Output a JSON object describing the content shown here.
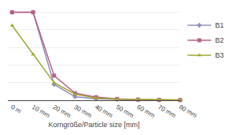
{
  "chart_data": {
    "type": "line",
    "xlabel": "Korngröße/Particle size [mm]",
    "x": [
      0,
      10,
      20,
      30,
      40,
      50,
      60,
      70,
      80
    ],
    "series": [
      {
        "name": "B1",
        "color": "#9090b8",
        "marker": "diamond",
        "values": [
          100,
          100,
          18,
          4,
          1.5,
          0.8,
          0.5,
          0.3,
          0.2
        ]
      },
      {
        "name": "B2",
        "color": "#b8608a",
        "marker": "square",
        "values": [
          100,
          100,
          28,
          8,
          3.5,
          1.5,
          0.8,
          0.5,
          0.3
        ]
      },
      {
        "name": "B3",
        "color": "#a0a832",
        "marker": "triangle",
        "values": [
          85,
          52,
          20,
          7,
          2.5,
          1.2,
          0.8,
          0.6,
          0.4
        ]
      }
    ],
    "xlim": [
      -2,
      80
    ],
    "xticks": [
      {
        "value": 0,
        "label": "0 m"
      },
      {
        "value": 10,
        "label": "10 mm"
      },
      {
        "value": 20,
        "label": "20 mm"
      },
      {
        "value": 30,
        "label": "30 mm"
      },
      {
        "value": 40,
        "label": "40 mm"
      },
      {
        "value": 50,
        "label": "50 mm"
      },
      {
        "value": 60,
        "label": "60 mm"
      },
      {
        "value": 70,
        "label": "70 mm"
      },
      {
        "value": 80,
        "label": "80 mm"
      }
    ],
    "ylim": [
      0,
      105
    ],
    "yticks": [
      0,
      20,
      40,
      60,
      80,
      100
    ],
    "grid": true,
    "tick_labels": "x",
    "legend": "right"
  }
}
